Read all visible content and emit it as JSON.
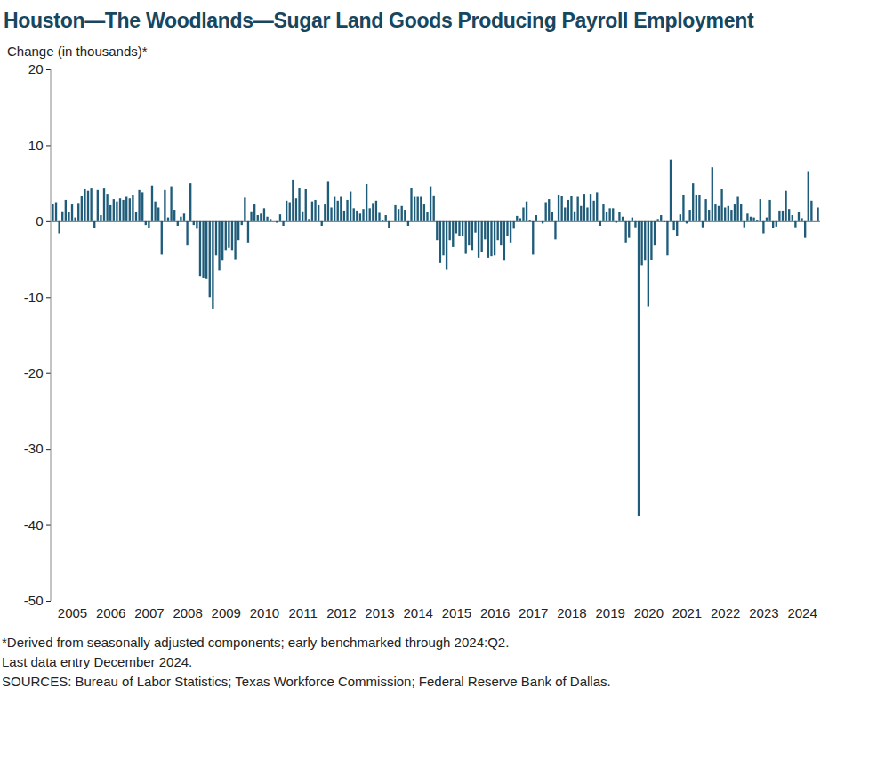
{
  "chart_data": {
    "type": "bar",
    "title": "Houston—The Woodlands—Sugar Land Goods Producing Payroll Employment",
    "ylabel": "Change (in thousands)*",
    "notes": [
      "*Derived from seasonally adjusted components; early benchmarked through 2024:Q2.",
      "Last data entry December 2024.",
      "SOURCES: Bureau of Labor Statistics; Texas Workforce Commission; Federal Reserve Bank of Dallas."
    ],
    "color": "#1f5c7a",
    "ylim": [
      -50,
      20
    ],
    "yticks": [
      -50,
      -40,
      -30,
      -20,
      -10,
      0,
      10,
      20
    ],
    "categories": [
      null,
      null,
      null,
      null,
      null,
      null,
      "2005",
      null,
      null,
      null,
      null,
      null,
      null,
      null,
      null,
      null,
      null,
      null,
      "2006",
      null,
      null,
      null,
      null,
      null,
      null,
      null,
      null,
      null,
      null,
      null,
      "2007",
      null,
      null,
      null,
      null,
      null,
      null,
      null,
      null,
      null,
      null,
      null,
      "2008",
      null,
      null,
      null,
      null,
      null,
      null,
      null,
      null,
      null,
      null,
      null,
      "2009",
      null,
      null,
      null,
      null,
      null,
      null,
      null,
      null,
      null,
      null,
      null,
      "2010",
      null,
      null,
      null,
      null,
      null,
      null,
      null,
      null,
      null,
      null,
      null,
      "2011",
      null,
      null,
      null,
      null,
      null,
      null,
      null,
      null,
      null,
      null,
      null,
      "2012",
      null,
      null,
      null,
      null,
      null,
      null,
      null,
      null,
      null,
      null,
      null,
      "2013",
      null,
      null,
      null,
      null,
      null,
      null,
      null,
      null,
      null,
      null,
      null,
      "2014",
      null,
      null,
      null,
      null,
      null,
      null,
      null,
      null,
      null,
      null,
      null,
      "2015",
      null,
      null,
      null,
      null,
      null,
      null,
      null,
      null,
      null,
      null,
      null,
      "2016",
      null,
      null,
      null,
      null,
      null,
      null,
      null,
      null,
      null,
      null,
      null,
      "2017",
      null,
      null,
      null,
      null,
      null,
      null,
      null,
      null,
      null,
      null,
      null,
      "2018",
      null,
      null,
      null,
      null,
      null,
      null,
      null,
      null,
      null,
      null,
      null,
      "2019",
      null,
      null,
      null,
      null,
      null,
      null,
      null,
      null,
      null,
      null,
      null,
      "2020",
      null,
      null,
      null,
      null,
      null,
      null,
      null,
      null,
      null,
      null,
      null,
      "2021",
      null,
      null,
      null,
      null,
      null,
      null,
      null,
      null,
      null,
      null,
      null,
      "2022",
      null,
      null,
      null,
      null,
      null,
      null,
      null,
      null,
      null,
      null,
      null,
      "2023",
      null,
      null,
      null,
      null,
      null,
      null,
      null,
      null,
      null,
      null,
      null,
      "2024",
      null,
      null,
      null,
      null,
      null
    ],
    "values": [
      2.3,
      2.5,
      -1.6,
      1.3,
      2.8,
      1.2,
      2.2,
      0.5,
      2.4,
      3.3,
      4.2,
      4.0,
      4.3,
      -0.9,
      4.1,
      0.8,
      4.3,
      3.6,
      2.1,
      2.9,
      2.6,
      3.0,
      2.8,
      3.2,
      3.0,
      3.5,
      1.2,
      4.1,
      3.8,
      -0.5,
      -0.9,
      4.7,
      2.6,
      1.8,
      -4.4,
      4.1,
      0.5,
      4.6,
      1.5,
      -0.6,
      0.6,
      1.0,
      -3.2,
      5.0,
      -0.5,
      -1.0,
      -7.3,
      -7.5,
      -7.6,
      -10.0,
      -11.6,
      -4.5,
      -6.5,
      -5.2,
      -3.8,
      -3.5,
      -3.8,
      -5.0,
      -2.5,
      -0.5,
      3.1,
      -2.8,
      1.3,
      2.2,
      0.8,
      1.0,
      1.7,
      0.6,
      0.3,
      0.0,
      -0.2,
      0.9,
      -0.6,
      2.7,
      2.5,
      5.5,
      3.0,
      4.4,
      1.3,
      4.2,
      0.3,
      2.6,
      2.8,
      2.1,
      -0.6,
      2.2,
      5.2,
      1.8,
      3.2,
      2.7,
      3.2,
      1.4,
      2.8,
      3.9,
      1.7,
      1.4,
      1.0,
      1.6,
      4.9,
      1.7,
      2.4,
      2.7,
      1.1,
      0.2,
      0.8,
      -0.9,
      0.0,
      2.1,
      1.6,
      2.0,
      1.5,
      -0.6,
      4.4,
      3.2,
      3.2,
      3.2,
      2.2,
      1.2,
      4.6,
      3.4,
      -2.5,
      -5.5,
      -4.5,
      -6.4,
      -2.5,
      -3.4,
      -1.6,
      -2.0,
      -2.0,
      -4.3,
      -3.2,
      -3.8,
      -1.5,
      -4.8,
      -4.1,
      -2.4,
      -4.8,
      -4.6,
      -4.5,
      -2.5,
      -3.2,
      -5.2,
      -2.0,
      -2.8,
      -1.0,
      0.7,
      0.4,
      1.8,
      2.6,
      0.1,
      -4.4,
      0.8,
      0.0,
      -0.3,
      2.5,
      2.9,
      1.2,
      -2.4,
      3.5,
      3.3,
      1.8,
      2.8,
      3.3,
      1.3,
      3.2,
      2.0,
      3.6,
      1.8,
      3.6,
      2.7,
      3.8,
      -0.6,
      2.2,
      1.2,
      1.7,
      1.7,
      -0.2,
      1.2,
      0.6,
      -2.8,
      -2.2,
      0.5,
      -0.8,
      -38.8,
      -5.8,
      -5.2,
      -11.2,
      -5.1,
      -3.2,
      0.3,
      0.8,
      -0.1,
      -4.5,
      8.1,
      -1.2,
      -2.0,
      0.9,
      3.5,
      -0.3,
      1.5,
      5.0,
      3.5,
      3.5,
      -0.8,
      2.9,
      1.5,
      7.1,
      2.2,
      2.0,
      4.2,
      1.8,
      2.0,
      1.5,
      2.2,
      3.2,
      2.3,
      -0.8,
      1.0,
      0.6,
      0.5,
      0.2,
      2.9,
      -1.6,
      0.5,
      2.8,
      -0.9,
      -0.7,
      1.4,
      1.4,
      4.0,
      1.6,
      0.8,
      -0.8,
      1.2,
      0.4,
      -2.2,
      6.6,
      2.7,
      0.0,
      1.8
    ]
  }
}
